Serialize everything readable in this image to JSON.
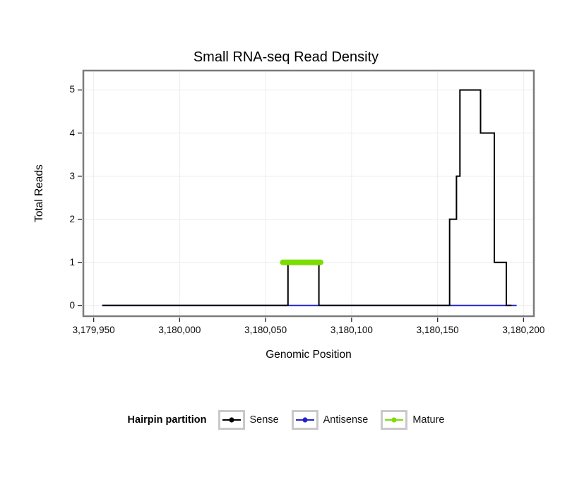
{
  "chart_data": {
    "type": "line",
    "style": "step",
    "title": "Small RNA-seq Read Density",
    "xlabel": "Genomic Position",
    "ylabel": "Total Reads",
    "xlim": [
      3179944,
      3180206
    ],
    "ylim": [
      -0.25,
      5.45
    ],
    "grid": true,
    "background": "#ffffff",
    "panel_border_color": "#7b7b7b",
    "grid_color": "#ececec",
    "x_ticks": [
      {
        "value": 3179950,
        "label": "3,179,950"
      },
      {
        "value": 3180000,
        "label": "3,180,000"
      },
      {
        "value": 3180050,
        "label": "3,180,050"
      },
      {
        "value": 3180100,
        "label": "3,180,100"
      },
      {
        "value": 3180150,
        "label": "3,180,150"
      },
      {
        "value": 3180200,
        "label": "3,180,200"
      }
    ],
    "y_ticks": [
      {
        "value": 0,
        "label": "0"
      },
      {
        "value": 1,
        "label": "1"
      },
      {
        "value": 2,
        "label": "2"
      },
      {
        "value": 3,
        "label": "3"
      },
      {
        "value": 4,
        "label": "4"
      },
      {
        "value": 5,
        "label": "5"
      }
    ],
    "series": [
      {
        "name": "Antisense",
        "color": "#2222CC",
        "width": 2,
        "linecap": "butt",
        "points": [
          [
            3179955,
            0
          ],
          [
            3180196,
            0
          ]
        ]
      },
      {
        "name": "Sense",
        "color": "#000000",
        "width": 2,
        "linecap": "butt",
        "points": [
          [
            3179955,
            0
          ],
          [
            3180063,
            0
          ],
          [
            3180063,
            1
          ],
          [
            3180081,
            1
          ],
          [
            3180081,
            0
          ],
          [
            3180157,
            0
          ],
          [
            3180157,
            2
          ],
          [
            3180161,
            2
          ],
          [
            3180161,
            3
          ],
          [
            3180163,
            3
          ],
          [
            3180163,
            5
          ],
          [
            3180175,
            5
          ],
          [
            3180175,
            4
          ],
          [
            3180183,
            4
          ],
          [
            3180183,
            1
          ],
          [
            3180190,
            1
          ],
          [
            3180190,
            0
          ],
          [
            3180193,
            0
          ]
        ]
      },
      {
        "name": "Mature",
        "color": "#7CDE00",
        "width": 8,
        "linecap": "round",
        "points": [
          [
            3180060,
            1
          ],
          [
            3180082,
            1
          ]
        ]
      }
    ],
    "legend": {
      "title": "Hairpin partition",
      "position": "bottom",
      "items": [
        {
          "label": "Sense",
          "color": "#000000"
        },
        {
          "label": "Antisense",
          "color": "#2222CC"
        },
        {
          "label": "Mature",
          "color": "#7CDE00"
        }
      ]
    }
  }
}
